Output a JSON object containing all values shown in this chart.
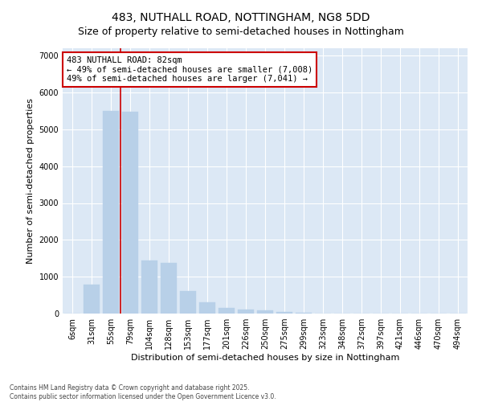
{
  "title": "483, NUTHALL ROAD, NOTTINGHAM, NG8 5DD",
  "subtitle": "Size of property relative to semi-detached houses in Nottingham",
  "xlabel": "Distribution of semi-detached houses by size in Nottingham",
  "ylabel": "Number of semi-detached properties",
  "categories": [
    "6sqm",
    "31sqm",
    "55sqm",
    "79sqm",
    "104sqm",
    "128sqm",
    "153sqm",
    "177sqm",
    "201sqm",
    "226sqm",
    "250sqm",
    "275sqm",
    "299sqm",
    "323sqm",
    "348sqm",
    "372sqm",
    "397sqm",
    "421sqm",
    "446sqm",
    "470sqm",
    "494sqm"
  ],
  "values": [
    10,
    780,
    5500,
    5480,
    1450,
    1380,
    620,
    310,
    160,
    110,
    80,
    50,
    20,
    8,
    4,
    2,
    2,
    1,
    1,
    0,
    0
  ],
  "bar_color": "#b8d0e8",
  "bar_edge_color": "#b8d0e8",
  "vline_index": 3,
  "annotation_text": "483 NUTHALL ROAD: 82sqm\n← 49% of semi-detached houses are smaller (7,008)\n49% of semi-detached houses are larger (7,041) →",
  "annotation_box_color": "#ffffff",
  "annotation_box_edge_color": "#cc0000",
  "vline_color": "#cc0000",
  "ylim": [
    0,
    7200
  ],
  "yticks": [
    0,
    1000,
    2000,
    3000,
    4000,
    5000,
    6000,
    7000
  ],
  "plot_background": "#dce8f5",
  "footer_text": "Contains HM Land Registry data © Crown copyright and database right 2025.\nContains public sector information licensed under the Open Government Licence v3.0.",
  "title_fontsize": 10,
  "axis_label_fontsize": 8,
  "tick_fontsize": 7,
  "annotation_fontsize": 7.5
}
